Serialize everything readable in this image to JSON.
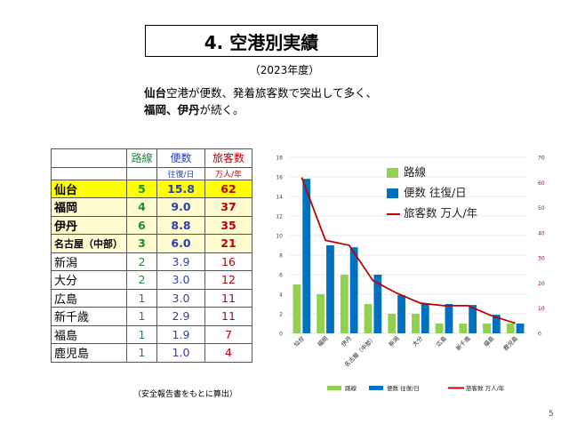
{
  "title": "4.  空港別実績",
  "subtitle": "（2023年度）",
  "lead": {
    "line1_bold": "仙台",
    "line1_rest": "空港が便数、発着旅客数で突出して多く、",
    "line2_bold": "福岡、伊丹",
    "line2_rest": "が続く。"
  },
  "table": {
    "headers": [
      "路線",
      "便数",
      "旅客数"
    ],
    "units": [
      "",
      "往復/日",
      "万人/年"
    ],
    "rows": [
      {
        "name": "仙台",
        "routes": "5",
        "flights": "15.8",
        "passengers": "62"
      },
      {
        "name": "福岡",
        "routes": "4",
        "flights": "9.0",
        "passengers": "37"
      },
      {
        "name": "伊丹",
        "routes": "6",
        "flights": "8.8",
        "passengers": "35"
      },
      {
        "name": "名古屋（中部）",
        "routes": "3",
        "flights": "6.0",
        "passengers": "21"
      },
      {
        "name": "新潟",
        "routes": "2",
        "flights": "3.9",
        "passengers": "16"
      },
      {
        "name": "大分",
        "routes": "2",
        "flights": "3.0",
        "passengers": "12"
      },
      {
        "name": "広島",
        "routes": "1",
        "flights": "3.0",
        "passengers": "11"
      },
      {
        "name": "新千歳",
        "routes": "1",
        "flights": "2.9",
        "passengers": "11"
      },
      {
        "name": "福島",
        "routes": "1",
        "flights": "1.9",
        "passengers": "7"
      },
      {
        "name": "鹿児島",
        "routes": "1",
        "flights": "1.0",
        "passengers": "4"
      }
    ]
  },
  "note": "（安全報告書をもとに算出）",
  "page_number": "5",
  "colors": {
    "routes": "#92d050",
    "flights": "#0070c0",
    "passengers": "#c00000"
  },
  "chart_data": {
    "type": "bar",
    "categories": [
      "仙台",
      "福岡",
      "伊丹",
      "名古屋（中部）",
      "新潟",
      "大分",
      "広島",
      "新千歳",
      "福島",
      "鹿児島"
    ],
    "series": [
      {
        "name": "路線",
        "type": "bar",
        "axis": "left",
        "values": [
          5,
          4,
          6,
          3,
          2,
          2,
          1,
          1,
          1,
          1
        ]
      },
      {
        "name": "便数 往復/日",
        "type": "bar",
        "axis": "left",
        "values": [
          15.8,
          9.0,
          8.8,
          6.0,
          3.9,
          3.0,
          3.0,
          2.9,
          1.9,
          1.0
        ]
      },
      {
        "name": "旅客数 万人/年",
        "type": "line",
        "axis": "right",
        "values": [
          62,
          37,
          35,
          21,
          16,
          12,
          11,
          11,
          7,
          4
        ]
      }
    ],
    "left_ticks": [
      "0",
      "2",
      "4",
      "6",
      "8",
      "10",
      "12",
      "14",
      "16",
      "18"
    ],
    "right_ticks": [
      "0",
      "10",
      "20",
      "30",
      "40",
      "50",
      "60",
      "70"
    ],
    "ylim_left": [
      0,
      18
    ],
    "ylim_right": [
      0,
      70
    ],
    "legend_inner": [
      "路線",
      "便数 往復/日",
      "旅客数 万人/年"
    ],
    "legend_bottom": [
      "路線",
      "便数 往復/日",
      "旅客数 万人/年"
    ],
    "legend_placement": "top-right and bottom",
    "grid": true
  }
}
